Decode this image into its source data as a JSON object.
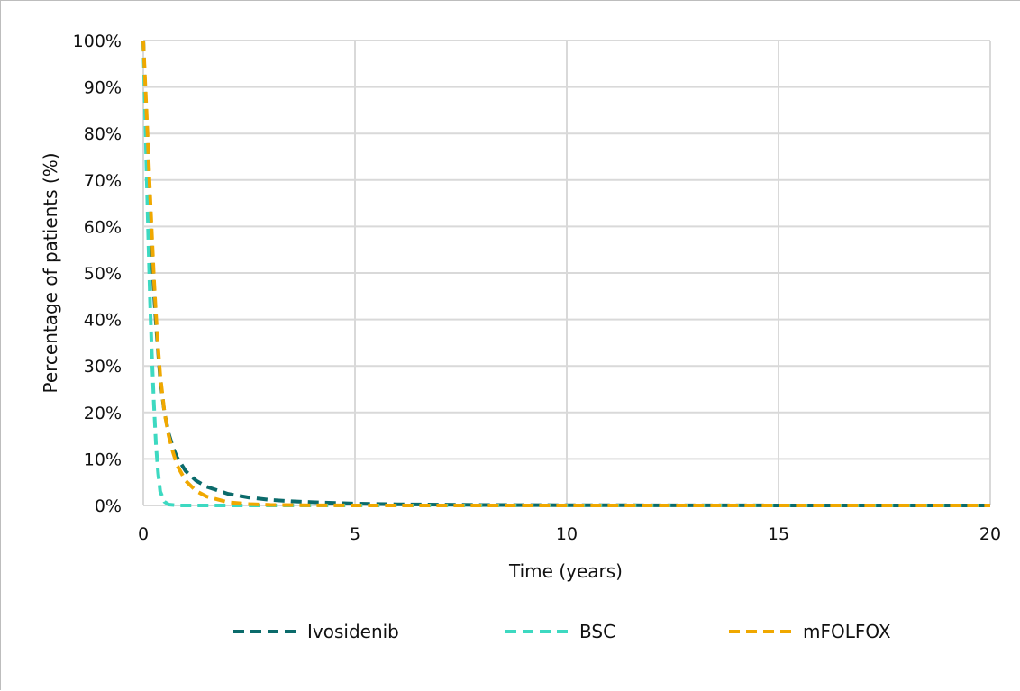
{
  "chart_data": {
    "type": "line",
    "title": "",
    "xlabel": "Time (years)",
    "ylabel": "Percentage of patients (%)",
    "xlim": [
      0,
      20
    ],
    "ylim": [
      0,
      100
    ],
    "x_ticks": [
      "0",
      "5",
      "10",
      "15",
      "20"
    ],
    "y_ticks": [
      "0%",
      "10%",
      "20%",
      "30%",
      "40%",
      "50%",
      "60%",
      "70%",
      "80%",
      "90%",
      "100%"
    ],
    "grid": true,
    "legend_position": "bottom",
    "series": [
      {
        "name": "Ivosidenib",
        "color": "#0b6b6b",
        "style": "dashed",
        "x": [
          0,
          0.05,
          0.1,
          0.15,
          0.2,
          0.25,
          0.3,
          0.35,
          0.4,
          0.5,
          0.6,
          0.7,
          0.8,
          1.0,
          1.25,
          1.5,
          2.0,
          2.5,
          3.0,
          3.5,
          4.0,
          5.0,
          6.0,
          8.0,
          10.0,
          15.0,
          20.0
        ],
        "y": [
          100,
          88,
          76,
          65,
          55,
          46,
          39,
          33,
          27,
          20,
          15.5,
          12.5,
          10.3,
          7.4,
          5.3,
          4.0,
          2.5,
          1.7,
          1.2,
          0.9,
          0.7,
          0.4,
          0.25,
          0.1,
          0.05,
          0.01,
          0
        ]
      },
      {
        "name": "BSC",
        "color": "#3dd9c1",
        "style": "dashed",
        "x": [
          0,
          0.04,
          0.08,
          0.12,
          0.16,
          0.2,
          0.25,
          0.3,
          0.35,
          0.4,
          0.5,
          0.6,
          0.8,
          1.0,
          2.0,
          5.0,
          10.0,
          15.0,
          20.0
        ],
        "y": [
          100,
          86,
          71,
          57,
          44,
          33,
          22,
          13,
          7,
          3,
          0.8,
          0.2,
          0.02,
          0,
          0,
          0,
          0,
          0,
          0
        ]
      },
      {
        "name": "mFOLFOX",
        "color": "#f0a800",
        "style": "dashed",
        "x": [
          0,
          0.05,
          0.1,
          0.15,
          0.2,
          0.25,
          0.3,
          0.35,
          0.4,
          0.5,
          0.6,
          0.7,
          0.8,
          1.0,
          1.25,
          1.5,
          2.0,
          2.5,
          3.0,
          4.0,
          5.0,
          10.0,
          15.0,
          20.0
        ],
        "y": [
          100,
          90,
          80,
          69,
          59,
          49,
          41,
          34,
          28,
          20,
          15,
          11.5,
          8.6,
          5.3,
          3.1,
          1.9,
          0.7,
          0.3,
          0.12,
          0.03,
          0.01,
          0,
          0,
          0
        ]
      }
    ]
  }
}
